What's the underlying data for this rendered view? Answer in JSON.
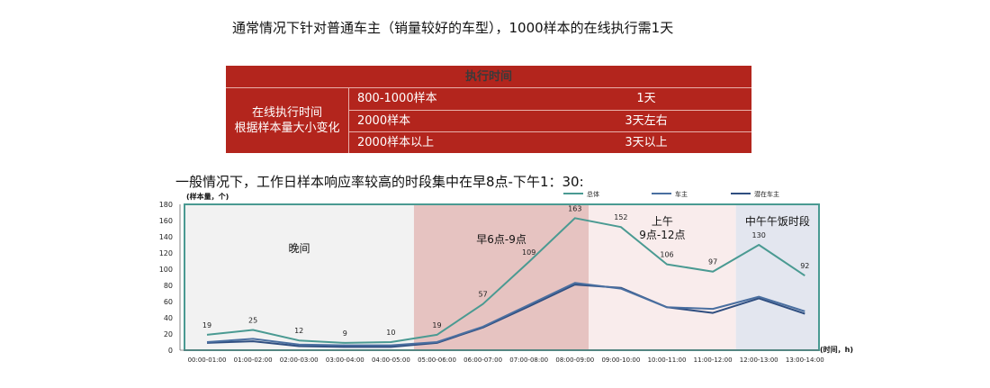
{
  "headline": "通常情况下针对普通车主（销量较好的车型），1000样本的在线执行需1天",
  "exec_table": {
    "header": "执行时间",
    "row_label": [
      "在线执行时间",
      "根据样本量大小变化"
    ],
    "rows": [
      {
        "sample": "800-1000样本",
        "time": "1天"
      },
      {
        "sample": "2000样本",
        "time": "3天左右"
      },
      {
        "sample": "2000样本以上",
        "time": "3天以上"
      }
    ]
  },
  "subhead": "一般情况下，工作日样本响应率较高的时段集中在早8点-下午1：30:",
  "colors": {
    "table_bg": "#b3251d",
    "total_line": "#4a9a92",
    "owner_line": "#4a6fa0",
    "potential_line": "#2f4e80",
    "zone_night": "#f2f2f2",
    "zone_morning": "#e6c3c1",
    "zone_forenoon": "#f9ecec",
    "zone_noon": "#e3e6ef",
    "frame": "#4a9a92"
  },
  "chart_data": {
    "type": "line",
    "ylabel": "(样本量，个)",
    "xlabel": "(时间，h)",
    "ylim": [
      0,
      180
    ],
    "yticks": [
      0,
      20,
      40,
      60,
      80,
      100,
      120,
      140,
      160,
      180
    ],
    "categories": [
      "00:00-01:00",
      "01:00-02:00",
      "02:00-03:00",
      "03:00-04:00",
      "04:00-05:00",
      "05:00-06:00",
      "06:00-07:00",
      "07:00-08:00",
      "08:00-09:00",
      "09:00-10:00",
      "10:00-11:00",
      "11:00-12:00",
      "12:00-13:00",
      "13:00-14:00"
    ],
    "series": [
      {
        "name": "总体",
        "color": "#4a9a92",
        "values": [
          19,
          25,
          12,
          9,
          10,
          19,
          57,
          109,
          163,
          152,
          106,
          97,
          130,
          92
        ],
        "labeled": true
      },
      {
        "name": "车主",
        "color": "#4a6fa0",
        "values": [
          10,
          14,
          7,
          6,
          6,
          10,
          29,
          56,
          83,
          76,
          53,
          51,
          66,
          48
        ],
        "labeled": false
      },
      {
        "name": "潜在车主",
        "color": "#2f4e80",
        "values": [
          9,
          11,
          5,
          4,
          4,
          9,
          28,
          54,
          81,
          77,
          53,
          46,
          64,
          45
        ],
        "labeled": false
      }
    ],
    "zones": [
      {
        "label": "晚间",
        "from": 0,
        "to": 4.5,
        "color": "#f2f2f2"
      },
      {
        "label": "早6点-9点",
        "from": 4.5,
        "to": 8.3,
        "color": "#e6c3c1"
      },
      {
        "label": "上午\n9点-12点",
        "from": 8.3,
        "to": 11.5,
        "color": "#f9ecec"
      },
      {
        "label": "中午午饭时段",
        "from": 11.5,
        "to": 13.5,
        "color": "#e3e6ef"
      }
    ],
    "legend_position": "top-right",
    "grid": false
  }
}
